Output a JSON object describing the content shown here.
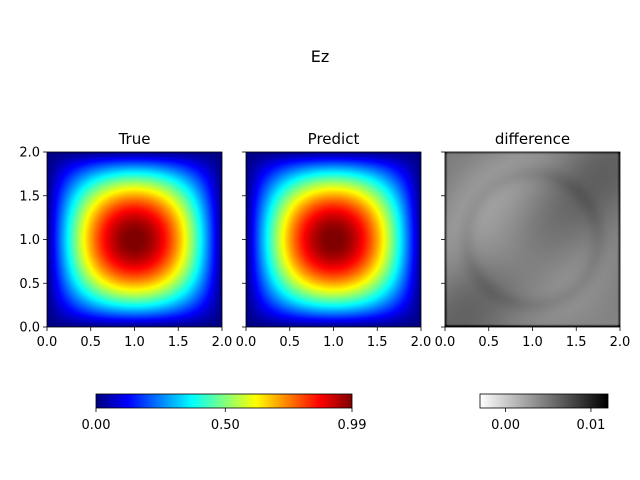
{
  "figure": {
    "suptitle": "Ez"
  },
  "chart_data": [
    {
      "type": "heatmap",
      "title": "True",
      "colormap": "jet",
      "field": "sin(pi*x/2)*sin(pi*y/2)",
      "xlim": [
        0.0,
        2.0
      ],
      "ylim": [
        0.0,
        2.0
      ],
      "xticks": [
        "0.0",
        "0.5",
        "1.0",
        "1.5",
        "2.0"
      ],
      "yticks": [
        "0.0",
        "0.5",
        "1.0",
        "1.5",
        "2.0"
      ],
      "vmin": 0.0,
      "vmax": 0.99
    },
    {
      "type": "heatmap",
      "title": "Predict",
      "colormap": "jet",
      "field": "sin(pi*x/2)*sin(pi*y/2)",
      "xlim": [
        0.0,
        2.0
      ],
      "ylim": [
        0.0,
        2.0
      ],
      "xticks": [
        "0.0",
        "0.5",
        "1.0",
        "1.5",
        "2.0"
      ],
      "yticks": [],
      "vmin": 0.0,
      "vmax": 0.99
    },
    {
      "type": "heatmap",
      "title": "difference",
      "colormap": "gray_r",
      "field": "near-uniform small error, darker band along bottom edge",
      "xlim": [
        0.0,
        2.0
      ],
      "ylim": [
        0.0,
        2.0
      ],
      "xticks": [
        "0.0",
        "0.5",
        "1.0",
        "1.5",
        "2.0"
      ],
      "yticks": [],
      "vmin": -0.003,
      "vmax": 0.012
    }
  ],
  "colorbars": [
    {
      "colormap": "jet",
      "vmin": 0.0,
      "vmax": 0.99,
      "ticks": [
        0.0,
        0.5,
        0.99
      ],
      "tick_labels": [
        "0.00",
        "0.50",
        "0.99"
      ]
    },
    {
      "colormap": "gray_r",
      "vmin": -0.003,
      "vmax": 0.012,
      "ticks": [
        0.0,
        0.01
      ],
      "tick_labels": [
        "0.00",
        "0.01"
      ]
    }
  ]
}
